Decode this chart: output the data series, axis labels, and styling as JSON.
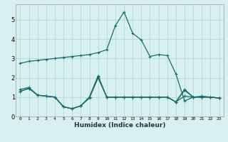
{
  "xlabel": "Humidex (Indice chaleur)",
  "bg_color": "#d8f0f0",
  "grid_color": "#b0d8d8",
  "line_color": "#1a6b6b",
  "xlim": [
    -0.5,
    23.5
  ],
  "ylim": [
    0,
    5.8
  ],
  "xticks": [
    0,
    1,
    2,
    3,
    4,
    5,
    6,
    7,
    8,
    9,
    10,
    11,
    12,
    13,
    14,
    15,
    16,
    17,
    18,
    19,
    20,
    21,
    22,
    23
  ],
  "yticks": [
    0,
    1,
    2,
    3,
    4,
    5
  ],
  "line1_x": [
    0,
    1,
    2,
    3,
    4,
    5,
    6,
    7,
    8,
    9,
    10,
    11,
    12,
    13,
    14,
    15,
    16,
    17,
    18,
    19,
    20,
    21,
    22,
    23
  ],
  "line1_y": [
    2.75,
    2.85,
    2.9,
    2.95,
    3.0,
    3.05,
    3.1,
    3.15,
    3.2,
    3.3,
    3.45,
    4.7,
    5.4,
    4.3,
    3.95,
    3.1,
    3.2,
    3.15,
    2.2,
    0.8,
    1.0,
    1.05,
    1.0,
    0.95
  ],
  "line2_x": [
    0,
    1,
    2,
    3,
    4,
    5,
    6,
    7,
    8,
    9,
    10,
    11,
    12,
    13,
    14,
    15,
    16,
    17,
    18,
    19,
    20,
    21,
    22,
    23
  ],
  "line2_y": [
    1.4,
    1.5,
    1.1,
    1.05,
    1.0,
    0.5,
    0.4,
    0.55,
    1.0,
    2.1,
    1.0,
    1.0,
    1.0,
    1.0,
    1.0,
    1.0,
    1.0,
    1.0,
    0.75,
    1.05,
    1.0,
    1.0,
    1.0,
    0.95
  ],
  "line3_x": [
    0,
    1,
    2,
    3,
    4,
    5,
    6,
    7,
    8,
    9,
    10,
    11,
    12,
    13,
    14,
    15,
    16,
    17,
    18,
    19,
    20,
    21,
    22,
    23
  ],
  "line3_y": [
    1.3,
    1.45,
    1.1,
    1.05,
    1.0,
    0.5,
    0.4,
    0.55,
    1.0,
    2.05,
    1.0,
    1.0,
    1.0,
    1.0,
    1.0,
    1.0,
    1.0,
    1.0,
    0.75,
    1.4,
    1.0,
    1.0,
    1.0,
    0.95
  ],
  "line4_x": [
    0,
    1,
    2,
    3,
    4,
    5,
    6,
    7,
    8,
    9,
    10,
    11,
    12,
    13,
    14,
    15,
    16,
    17,
    18,
    19,
    20,
    21,
    22,
    23
  ],
  "line4_y": [
    1.3,
    1.45,
    1.1,
    1.05,
    1.0,
    0.5,
    0.4,
    0.55,
    0.95,
    2.0,
    1.0,
    1.0,
    1.0,
    1.0,
    1.0,
    1.0,
    1.0,
    1.0,
    0.75,
    1.35,
    1.0,
    1.0,
    1.0,
    0.95
  ]
}
